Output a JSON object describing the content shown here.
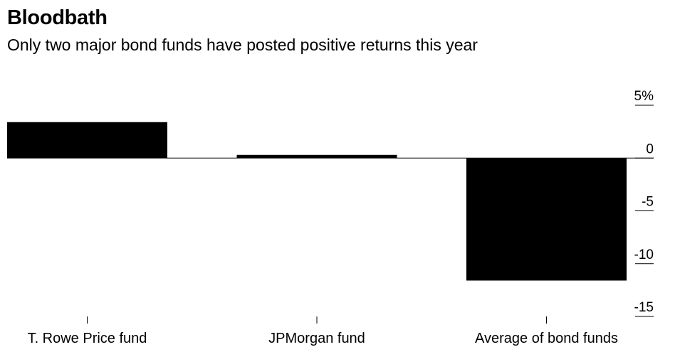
{
  "header": {
    "title": "Bloodbath",
    "subtitle": "Only two major bond funds have posted positive returns this year"
  },
  "colors": {
    "bar": "#000000",
    "axis": "#000000",
    "background": "#ffffff"
  },
  "chart_data": {
    "type": "bar",
    "title": "Bloodbath",
    "subtitle": "Only two major bond funds have posted positive returns this year",
    "xlabel": "",
    "ylabel": "",
    "categories": [
      "T. Rowe Price fund",
      "JPMorgan fund",
      "Average of bond funds"
    ],
    "values": [
      3.4,
      0.3,
      -11.6
    ],
    "ylim": [
      -15,
      5
    ],
    "yticks": [
      5,
      0,
      -5,
      -10,
      -15
    ],
    "ytick_labels": [
      "5%",
      "0",
      "-5",
      "-10",
      "-15"
    ],
    "y_axis_side": "right",
    "grid": false
  }
}
